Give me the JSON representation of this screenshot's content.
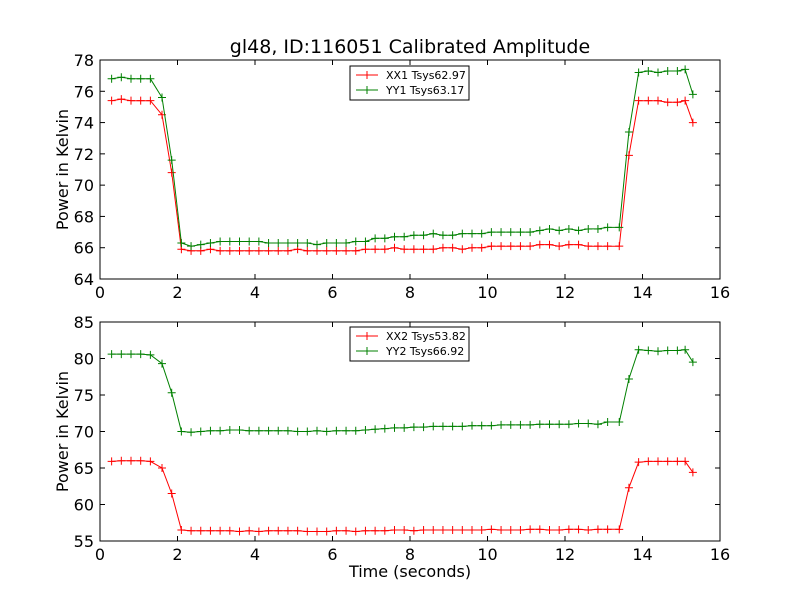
{
  "figure": {
    "title": "gl48, ID:116051 Calibrated Amplitude"
  },
  "chart_data": [
    {
      "type": "line",
      "ylabel": "Power in Kelvin",
      "xlabel": "",
      "xlim": [
        0,
        16
      ],
      "ylim": [
        64,
        78
      ],
      "xticks": [
        0,
        2,
        4,
        6,
        8,
        10,
        12,
        14,
        16
      ],
      "yticks": [
        64,
        66,
        68,
        70,
        72,
        74,
        76,
        78
      ],
      "grid": false,
      "legend_position": "top-center",
      "x": [
        0.3,
        0.55,
        0.8,
        1.05,
        1.3,
        1.6,
        1.85,
        2.1,
        2.35,
        2.6,
        2.85,
        3.1,
        3.35,
        3.6,
        3.85,
        4.1,
        4.35,
        4.6,
        4.85,
        5.1,
        5.35,
        5.6,
        5.85,
        6.1,
        6.35,
        6.6,
        6.85,
        7.1,
        7.35,
        7.6,
        7.85,
        8.1,
        8.35,
        8.6,
        8.85,
        9.1,
        9.35,
        9.6,
        9.85,
        10.1,
        10.35,
        10.6,
        10.85,
        11.1,
        11.35,
        11.6,
        11.85,
        12.1,
        12.35,
        12.6,
        12.85,
        13.1,
        13.4,
        13.65,
        13.9,
        14.15,
        14.4,
        14.65,
        14.9,
        15.1,
        15.3
      ],
      "series": [
        {
          "name": "XX1 Tsys62.97",
          "color": "#ff0000",
          "values": [
            75.4,
            75.5,
            75.4,
            75.4,
            75.4,
            74.5,
            70.8,
            65.9,
            65.8,
            65.8,
            65.9,
            65.8,
            65.8,
            65.8,
            65.8,
            65.8,
            65.8,
            65.8,
            65.8,
            65.9,
            65.8,
            65.8,
            65.8,
            65.8,
            65.8,
            65.8,
            65.9,
            65.9,
            65.9,
            66.0,
            65.9,
            65.9,
            65.9,
            65.9,
            66.0,
            66.0,
            65.9,
            66.0,
            66.0,
            66.1,
            66.1,
            66.1,
            66.1,
            66.1,
            66.2,
            66.2,
            66.1,
            66.2,
            66.2,
            66.1,
            66.1,
            66.1,
            66.1,
            71.9,
            75.4,
            75.4,
            75.4,
            75.3,
            75.3,
            75.4,
            74.0
          ]
        },
        {
          "name": "YY1 Tsys63.17",
          "color": "#008000",
          "values": [
            76.8,
            76.9,
            76.8,
            76.8,
            76.8,
            75.6,
            71.6,
            66.3,
            66.1,
            66.2,
            66.3,
            66.4,
            66.4,
            66.4,
            66.4,
            66.4,
            66.3,
            66.3,
            66.3,
            66.3,
            66.3,
            66.2,
            66.3,
            66.3,
            66.3,
            66.4,
            66.4,
            66.6,
            66.6,
            66.7,
            66.7,
            66.8,
            66.8,
            66.9,
            66.8,
            66.8,
            66.9,
            66.9,
            66.9,
            67.0,
            67.0,
            67.0,
            67.0,
            67.0,
            67.1,
            67.2,
            67.1,
            67.2,
            67.1,
            67.2,
            67.2,
            67.3,
            67.3,
            73.4,
            77.2,
            77.3,
            77.2,
            77.3,
            77.3,
            77.4,
            75.8
          ]
        }
      ]
    },
    {
      "type": "line",
      "ylabel": "Power in Kelvin",
      "xlabel": "Time (seconds)",
      "xlim": [
        0,
        16
      ],
      "ylim": [
        55,
        85
      ],
      "xticks": [
        0,
        2,
        4,
        6,
        8,
        10,
        12,
        14,
        16
      ],
      "yticks": [
        55,
        60,
        65,
        70,
        75,
        80,
        85
      ],
      "grid": false,
      "legend_position": "top-center",
      "x": [
        0.3,
        0.55,
        0.8,
        1.05,
        1.3,
        1.6,
        1.85,
        2.1,
        2.35,
        2.6,
        2.85,
        3.1,
        3.35,
        3.6,
        3.85,
        4.1,
        4.35,
        4.6,
        4.85,
        5.1,
        5.35,
        5.6,
        5.85,
        6.1,
        6.35,
        6.6,
        6.85,
        7.1,
        7.35,
        7.6,
        7.85,
        8.1,
        8.35,
        8.6,
        8.85,
        9.1,
        9.35,
        9.6,
        9.85,
        10.1,
        10.35,
        10.6,
        10.85,
        11.1,
        11.35,
        11.6,
        11.85,
        12.1,
        12.35,
        12.6,
        12.85,
        13.1,
        13.4,
        13.65,
        13.9,
        14.15,
        14.4,
        14.65,
        14.9,
        15.1,
        15.3
      ],
      "series": [
        {
          "name": "XX2 Tsys53.82",
          "color": "#ff0000",
          "values": [
            65.9,
            66.0,
            66.0,
            66.0,
            65.9,
            65.0,
            61.5,
            56.5,
            56.4,
            56.4,
            56.4,
            56.4,
            56.4,
            56.3,
            56.4,
            56.3,
            56.4,
            56.4,
            56.4,
            56.4,
            56.3,
            56.3,
            56.3,
            56.4,
            56.4,
            56.3,
            56.4,
            56.4,
            56.4,
            56.5,
            56.5,
            56.4,
            56.5,
            56.5,
            56.5,
            56.5,
            56.5,
            56.5,
            56.5,
            56.6,
            56.5,
            56.5,
            56.5,
            56.6,
            56.6,
            56.5,
            56.5,
            56.6,
            56.6,
            56.5,
            56.6,
            56.6,
            56.6,
            62.3,
            65.8,
            65.9,
            65.9,
            65.9,
            65.9,
            65.9,
            64.4
          ]
        },
        {
          "name": "YY2 Tsys66.92",
          "color": "#008000",
          "values": [
            80.6,
            80.6,
            80.6,
            80.6,
            80.5,
            79.3,
            75.3,
            70.0,
            69.9,
            70.0,
            70.1,
            70.1,
            70.2,
            70.2,
            70.1,
            70.1,
            70.1,
            70.1,
            70.1,
            70.0,
            70.0,
            70.1,
            70.0,
            70.1,
            70.1,
            70.1,
            70.2,
            70.3,
            70.4,
            70.5,
            70.5,
            70.6,
            70.6,
            70.7,
            70.7,
            70.7,
            70.7,
            70.8,
            70.8,
            70.8,
            70.9,
            70.9,
            70.9,
            70.9,
            71.0,
            71.0,
            71.0,
            71.0,
            71.1,
            71.1,
            71.0,
            71.3,
            71.3,
            77.2,
            81.2,
            81.1,
            81.0,
            81.1,
            81.1,
            81.2,
            79.5
          ]
        }
      ]
    }
  ]
}
